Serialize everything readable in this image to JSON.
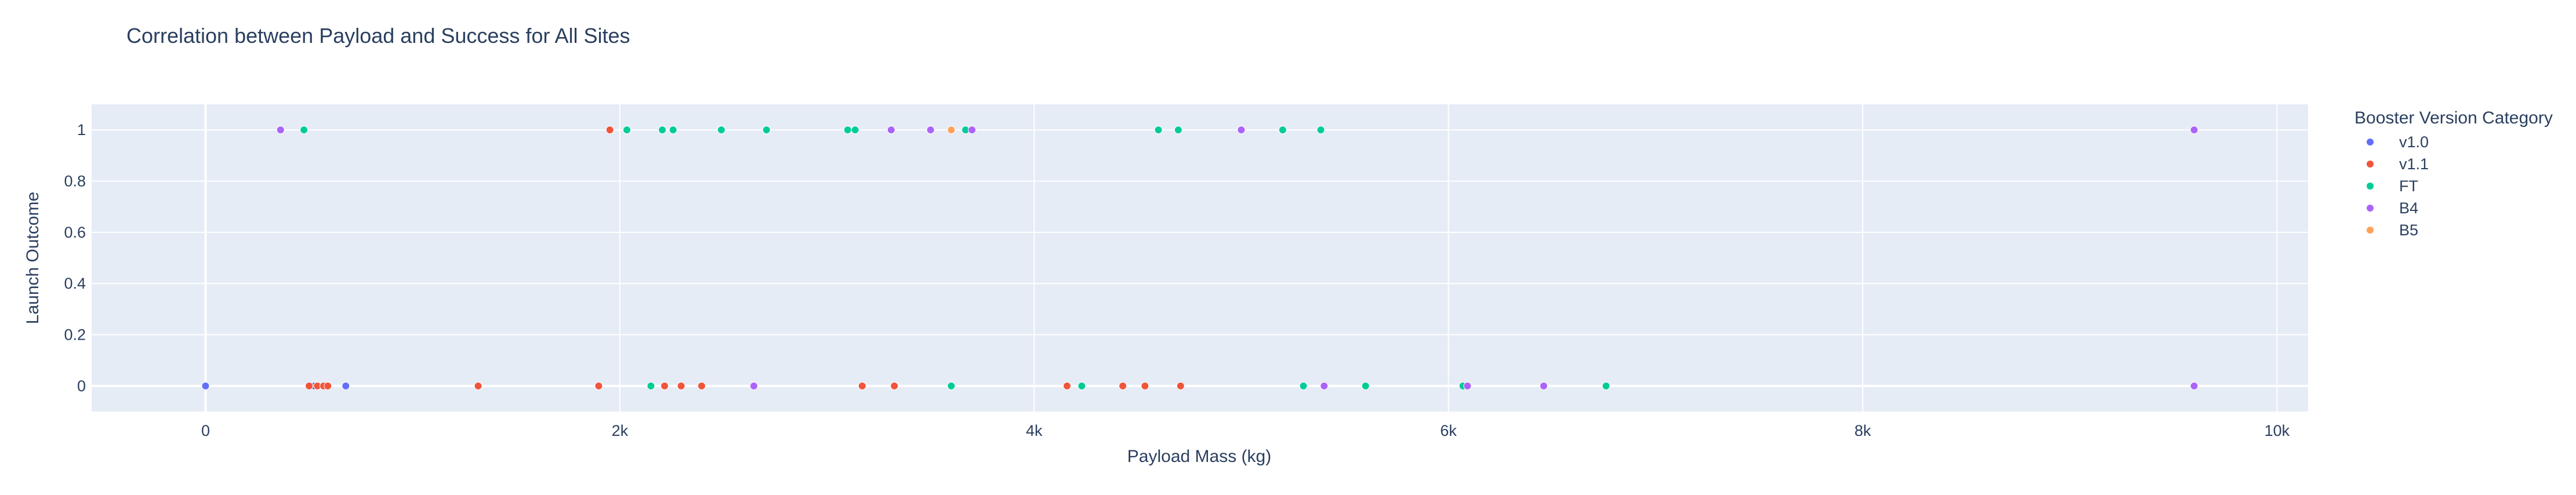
{
  "chart_data": {
    "type": "scatter",
    "title": "Correlation between Payload and Success for All Sites",
    "xlabel": "Payload Mass (kg)",
    "ylabel": "Launch Outcome",
    "xlim": [
      -550,
      10150
    ],
    "ylim": [
      -0.1,
      1.1
    ],
    "x_ticks": [
      0,
      2000,
      4000,
      6000,
      8000,
      10000
    ],
    "x_tick_labels": [
      "0",
      "2k",
      "4k",
      "6k",
      "8k",
      "10k"
    ],
    "y_ticks": [
      0,
      0.2,
      0.4,
      0.6,
      0.8,
      1
    ],
    "y_tick_labels": [
      "0",
      "0.2",
      "0.4",
      "0.6",
      "0.8",
      "1"
    ],
    "grid": true,
    "legend_title": "Booster Version Category",
    "legend_position": "right",
    "series": [
      {
        "name": "v1.0",
        "color": "#636efa",
        "points": [
          [
            0,
            0
          ],
          [
            0,
            0
          ],
          [
            525,
            0
          ],
          [
            677,
            0
          ]
        ]
      },
      {
        "name": "v1.1",
        "color": "#ef553b",
        "points": [
          [
            500,
            0
          ],
          [
            540,
            0
          ],
          [
            570,
            0
          ],
          [
            590,
            0
          ],
          [
            1316,
            0
          ],
          [
            1898,
            0
          ],
          [
            1952,
            1
          ],
          [
            2216,
            0
          ],
          [
            2296,
            0
          ],
          [
            2395,
            0
          ],
          [
            3170,
            0
          ],
          [
            3325,
            0
          ],
          [
            4159,
            0
          ],
          [
            4428,
            0
          ],
          [
            4535,
            0
          ],
          [
            4707,
            0
          ]
        ]
      },
      {
        "name": "FT",
        "color": "#00cc96",
        "points": [
          [
            475,
            1
          ],
          [
            2034,
            1
          ],
          [
            2150,
            0
          ],
          [
            2205,
            1
          ],
          [
            2257,
            1
          ],
          [
            2490,
            1
          ],
          [
            2708,
            1
          ],
          [
            3100,
            1
          ],
          [
            3136,
            1
          ],
          [
            3600,
            0
          ],
          [
            3669,
            1
          ],
          [
            4230,
            0
          ],
          [
            4600,
            1
          ],
          [
            4696,
            1
          ],
          [
            5200,
            1
          ],
          [
            5300,
            0
          ],
          [
            5384,
            1
          ],
          [
            5600,
            0
          ],
          [
            6070,
            0
          ],
          [
            6761,
            0
          ]
        ]
      },
      {
        "name": "B4",
        "color": "#ab63fa",
        "points": [
          [
            362,
            1
          ],
          [
            2647,
            0
          ],
          [
            3310,
            1
          ],
          [
            3500,
            1
          ],
          [
            3700,
            1
          ],
          [
            5000,
            1
          ],
          [
            5400,
            0
          ],
          [
            6092,
            0
          ],
          [
            6460,
            0
          ],
          [
            9600,
            1
          ],
          [
            9600,
            0
          ]
        ]
      },
      {
        "name": "B5",
        "color": "#ffa15a",
        "points": [
          [
            3600,
            1
          ]
        ]
      }
    ]
  }
}
